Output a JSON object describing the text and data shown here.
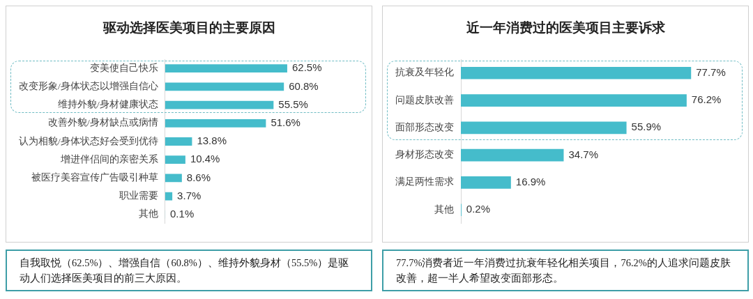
{
  "chart_data": [
    {
      "type": "bar",
      "orientation": "horizontal",
      "title": "驱动选择医美项目的主要原因",
      "categories": [
        "变美使自己快乐",
        "改变形象/身体状态以增强自信心",
        "维持外貌/身材健康状态",
        "改善外貌/身材缺点或病情",
        "认为相貌/身体状态好会受到优待",
        "增进伴侣间的亲密关系",
        "被医疗美容宣传广告吸引种草",
        "职业需要",
        "其他"
      ],
      "values": [
        62.5,
        60.8,
        55.5,
        51.6,
        13.8,
        10.4,
        8.6,
        3.7,
        0.1
      ],
      "value_labels": [
        "62.5%",
        "60.8%",
        "55.5%",
        "51.6%",
        "13.8%",
        "10.4%",
        "8.6%",
        "3.7%",
        "0.1%"
      ],
      "color": "#45bccb",
      "grid": false,
      "legend": false,
      "tick_labels": "y",
      "annotations": [
        "自我取悦（62.5%）、增强自信（60.8%）、维持外貌身材（55.5%）是驱动人们选择医美项目的前三大原因。"
      ]
    },
    {
      "type": "bar",
      "orientation": "horizontal",
      "title": "近一年消费过的医美项目主要诉求",
      "categories": [
        "抗衰及年轻化",
        "问题皮肤改善",
        "面部形态改变",
        "身材形态改变",
        "满足两性需求",
        "其他"
      ],
      "values": [
        77.7,
        76.2,
        55.9,
        34.7,
        16.9,
        0.2
      ],
      "value_labels": [
        "77.7%",
        "76.2%",
        "55.9%",
        "34.7%",
        "16.9%",
        "0.2%"
      ],
      "color": "#45bccb",
      "grid": false,
      "legend": false,
      "tick_labels": "y",
      "annotations": [
        "77.7%消费者近一年消费过抗衰年轻化相关项目，76.2%的人追求问题皮肤改善，超一半人希望改变面部形态。"
      ]
    }
  ]
}
